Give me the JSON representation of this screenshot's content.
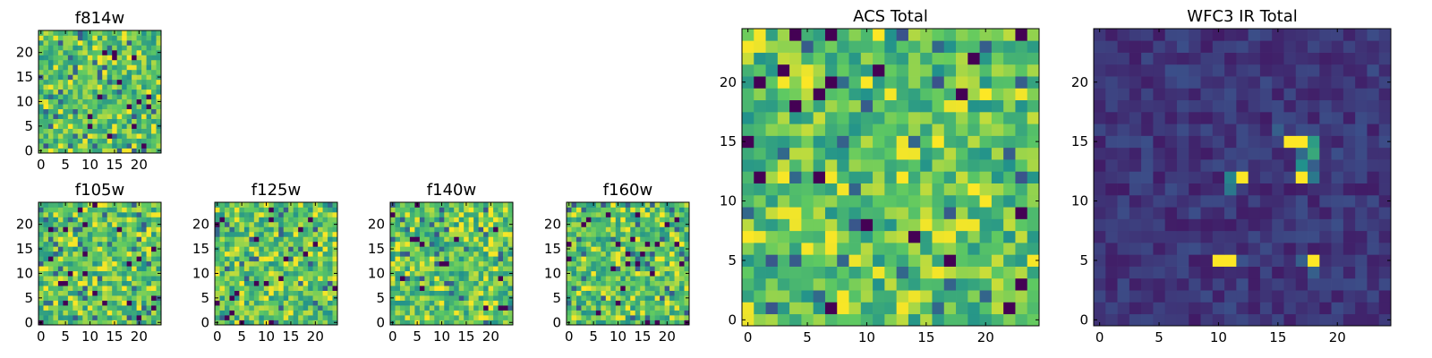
{
  "colormap": [
    "#440154",
    "#3b528b",
    "#21918c",
    "#5ec962",
    "#fde725"
  ],
  "chart_data": [
    {
      "type": "heatmap",
      "title": "f814w",
      "grid_size": [
        25,
        25
      ],
      "xlim": [
        -0.5,
        24.5
      ],
      "ylim": [
        -0.5,
        24.5
      ],
      "xticks": [
        0,
        5,
        10,
        15,
        20
      ],
      "yticks": [
        0,
        5,
        10,
        15,
        20
      ],
      "values": [],
      "value_range": [
        0,
        1
      ],
      "seed": 1,
      "style": "noise"
    },
    {
      "type": "heatmap",
      "title": "f105w",
      "grid_size": [
        25,
        25
      ],
      "xlim": [
        -0.5,
        24.5
      ],
      "ylim": [
        -0.5,
        24.5
      ],
      "xticks": [
        0,
        5,
        10,
        15,
        20
      ],
      "yticks": [
        0,
        5,
        10,
        15,
        20
      ],
      "values": [],
      "value_range": [
        0,
        1
      ],
      "seed": 2,
      "style": "noise"
    },
    {
      "type": "heatmap",
      "title": "f125w",
      "grid_size": [
        25,
        25
      ],
      "xlim": [
        -0.5,
        24.5
      ],
      "ylim": [
        -0.5,
        24.5
      ],
      "xticks": [
        0,
        5,
        10,
        15,
        20
      ],
      "yticks": [
        0,
        5,
        10,
        15,
        20
      ],
      "values": [],
      "value_range": [
        0,
        1
      ],
      "seed": 3,
      "style": "noise"
    },
    {
      "type": "heatmap",
      "title": "f140w",
      "grid_size": [
        25,
        25
      ],
      "xlim": [
        -0.5,
        24.5
      ],
      "ylim": [
        -0.5,
        24.5
      ],
      "xticks": [
        0,
        5,
        10,
        15,
        20
      ],
      "yticks": [
        0,
        5,
        10,
        15,
        20
      ],
      "values": [],
      "value_range": [
        0,
        1
      ],
      "seed": 4,
      "style": "noise"
    },
    {
      "type": "heatmap",
      "title": "f160w",
      "grid_size": [
        25,
        25
      ],
      "xlim": [
        -0.5,
        24.5
      ],
      "ylim": [
        -0.5,
        24.5
      ],
      "xticks": [
        0,
        5,
        10,
        15,
        20
      ],
      "yticks": [
        0,
        5,
        10,
        15,
        20
      ],
      "values": [],
      "value_range": [
        0,
        1
      ],
      "seed": 5,
      "style": "noise"
    },
    {
      "type": "heatmap",
      "title": "ACS Total",
      "grid_size": [
        25,
        25
      ],
      "xlim": [
        -0.5,
        24.5
      ],
      "ylim": [
        -0.5,
        24.5
      ],
      "xticks": [
        0,
        5,
        10,
        15,
        20
      ],
      "yticks": [
        0,
        5,
        10,
        15,
        20
      ],
      "values": [],
      "value_range": [
        0,
        1
      ],
      "seed": 6,
      "style": "noise"
    },
    {
      "type": "heatmap",
      "title": "WFC3 IR Total",
      "grid_size": [
        25,
        25
      ],
      "xlim": [
        -0.5,
        24.5
      ],
      "ylim": [
        -0.5,
        24.5
      ],
      "xticks": [
        0,
        5,
        10,
        15,
        20
      ],
      "yticks": [
        0,
        5,
        10,
        15,
        20
      ],
      "values": [],
      "value_range": [
        0,
        1
      ],
      "seed": 7,
      "style": "dark",
      "bright_pixels": [
        {
          "x": 16,
          "y": 15,
          "value": 1.0
        },
        {
          "x": 17,
          "y": 15,
          "value": 1.0
        },
        {
          "x": 18,
          "y": 15,
          "value": 0.55
        },
        {
          "x": 17,
          "y": 14,
          "value": 0.35
        },
        {
          "x": 18,
          "y": 14,
          "value": 0.6
        },
        {
          "x": 17,
          "y": 13,
          "value": 0.5
        },
        {
          "x": 18,
          "y": 13,
          "value": 0.3
        },
        {
          "x": 17,
          "y": 12,
          "value": 1.0
        },
        {
          "x": 18,
          "y": 12,
          "value": 0.4
        },
        {
          "x": 11,
          "y": 12,
          "value": 0.45
        },
        {
          "x": 12,
          "y": 12,
          "value": 1.0
        },
        {
          "x": 11,
          "y": 11,
          "value": 0.4
        },
        {
          "x": 10,
          "y": 5,
          "value": 1.0
        },
        {
          "x": 11,
          "y": 5,
          "value": 1.0
        },
        {
          "x": 18,
          "y": 5,
          "value": 1.0
        },
        {
          "x": 12,
          "y": 5,
          "value": 0.25
        },
        {
          "x": 17,
          "y": 5,
          "value": 0.3
        },
        {
          "x": 18,
          "y": 4,
          "value": 0.3
        },
        {
          "x": 15,
          "y": 16,
          "value": 0.3
        }
      ]
    }
  ]
}
